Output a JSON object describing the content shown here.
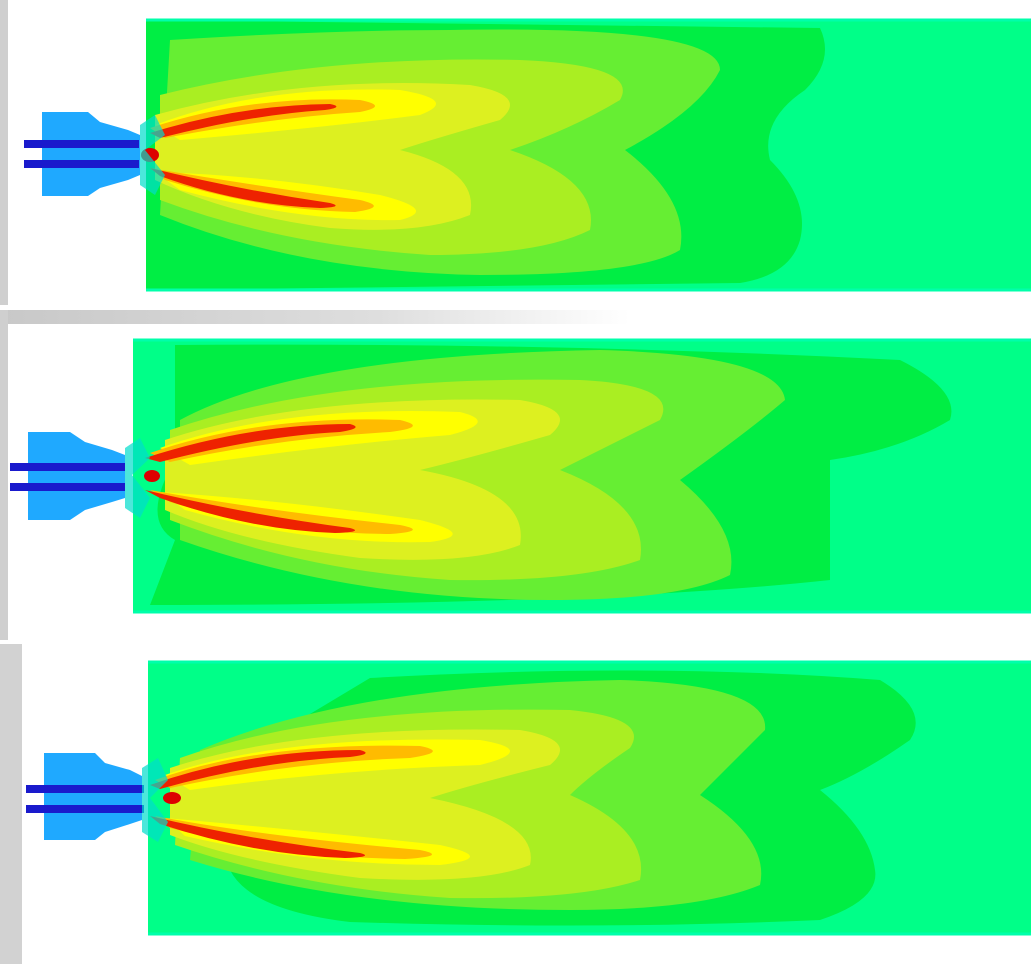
{
  "figure": {
    "panel_count": 3,
    "colormap": [
      "#0000cc",
      "#0099ff",
      "#00ddcc",
      "#00ff88",
      "#00ee44",
      "#66ee33",
      "#aaee22",
      "#ddf020",
      "#ffff00",
      "#ffbb00",
      "#ff6600",
      "#dd0000"
    ],
    "panels": [
      {
        "id": "panel-1"
      },
      {
        "id": "panel-2"
      },
      {
        "id": "panel-3"
      }
    ]
  }
}
